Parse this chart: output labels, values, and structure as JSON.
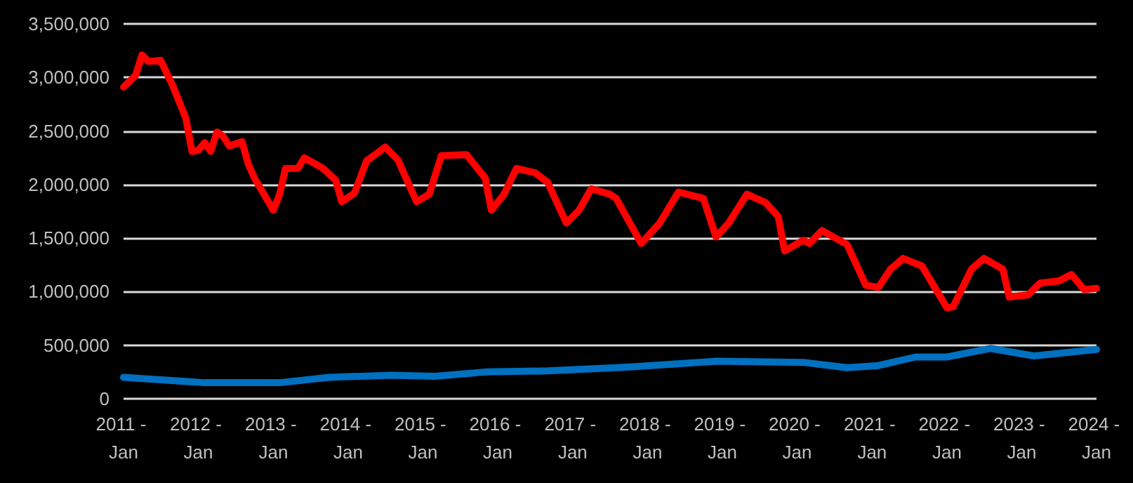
{
  "chart_data": {
    "type": "line",
    "x": [
      "2011-01",
      "2011-03",
      "2011-04",
      "2011-05",
      "2011-07",
      "2011-09",
      "2011-11",
      "2011-12",
      "2012-01",
      "2012-02",
      "2012-03",
      "2012-04",
      "2012-05",
      "2012-06",
      "2012-08",
      "2012-09",
      "2012-10",
      "2013-01",
      "2013-02",
      "2013-03",
      "2013-05",
      "2013-06",
      "2013-09",
      "2013-11",
      "2013-12",
      "2014-02",
      "2014-04",
      "2014-07",
      "2014-09",
      "2014-12",
      "2015-02",
      "2015-04",
      "2015-08",
      "2015-11",
      "2015-12",
      "2016-02",
      "2016-04",
      "2016-07",
      "2016-09",
      "2016-12",
      "2017-02",
      "2017-04",
      "2017-07",
      "2017-08",
      "2017-12",
      "2018-03",
      "2018-06",
      "2018-10",
      "2018-12",
      "2019-02",
      "2019-05",
      "2019-08",
      "2019-10",
      "2019-11",
      "2020-02",
      "2020-03",
      "2020-05",
      "2020-09",
      "2020-12",
      "2021-02",
      "2021-04",
      "2021-06",
      "2021-09",
      "2022-01",
      "2022-02",
      "2022-05",
      "2022-07",
      "2022-10",
      "2022-11",
      "2023-02",
      "2023-04",
      "2023-07",
      "2023-09",
      "2023-11",
      "2024-01"
    ],
    "series": [
      {
        "color": "#ff0000",
        "values": [
          2910000,
          3020000,
          3210000,
          3150000,
          3160000,
          2910000,
          2620000,
          2310000,
          2320000,
          2390000,
          2310000,
          2490000,
          2450000,
          2360000,
          2400000,
          2190000,
          2060000,
          1760000,
          1910000,
          2150000,
          2150000,
          2250000,
          2150000,
          2040000,
          1840000,
          1920000,
          2220000,
          2350000,
          2230000,
          1840000,
          1910000,
          2270000,
          2280000,
          2060000,
          1760000,
          1910000,
          2150000,
          2110000,
          2020000,
          1640000,
          1760000,
          1960000,
          1910000,
          1870000,
          1450000,
          1640000,
          1930000,
          1870000,
          1510000,
          1640000,
          1910000,
          1830000,
          1700000,
          1380000,
          1480000,
          1450000,
          1570000,
          1440000,
          1060000,
          1040000,
          1210000,
          1310000,
          1240000,
          850000,
          860000,
          1210000,
          1310000,
          1210000,
          950000,
          970000,
          1080000,
          1100000,
          1160000,
          1020000,
          1030000
        ]
      },
      {
        "color": "#0070c0",
        "x": [
          "2011-01",
          "2012-02",
          "2013-02",
          "2013-10",
          "2014-08",
          "2015-03",
          "2015-11",
          "2016-09",
          "2017-08",
          "2017-11",
          "2018-12",
          "2020-02",
          "2020-09",
          "2021-02",
          "2021-08",
          "2022-01",
          "2022-08",
          "2023-03",
          "2024-01"
        ],
        "values": [
          200000,
          150000,
          150000,
          200000,
          220000,
          210000,
          250000,
          260000,
          290000,
          300000,
          350000,
          340000,
          290000,
          310000,
          390000,
          390000,
          470000,
          400000,
          460000
        ]
      }
    ],
    "xlim": [
      "2011-01",
      "2024-01"
    ],
    "xticks": [
      {
        "value": "2011-01",
        "label": "2011 - Jan"
      },
      {
        "value": "2012-01",
        "label": "2012 - Jan"
      },
      {
        "value": "2013-01",
        "label": "2013 - Jan"
      },
      {
        "value": "2014-01",
        "label": "2014 - Jan"
      },
      {
        "value": "2015-01",
        "label": "2015 - Jan"
      },
      {
        "value": "2016-01",
        "label": "2016 - Jan"
      },
      {
        "value": "2017-01",
        "label": "2017 - Jan"
      },
      {
        "value": "2018-01",
        "label": "2018 - Jan"
      },
      {
        "value": "2019-01",
        "label": "2019 - Jan"
      },
      {
        "value": "2020-01",
        "label": "2020 - Jan"
      },
      {
        "value": "2021-01",
        "label": "2021 - Jan"
      },
      {
        "value": "2022-01",
        "label": "2022 - Jan"
      },
      {
        "value": "2023-01",
        "label": "2023 - Jan"
      },
      {
        "value": "2024-01",
        "label": "2024 - Jan"
      }
    ],
    "ylim": [
      0,
      3500000
    ],
    "yticks": [
      {
        "value": 0,
        "label": "0"
      },
      {
        "value": 500000,
        "label": "500,000"
      },
      {
        "value": 1000000,
        "label": "1,000,000"
      },
      {
        "value": 1500000,
        "label": "1,500,000"
      },
      {
        "value": 2000000,
        "label": "2,000,000"
      },
      {
        "value": 2500000,
        "label": "2,500,000"
      },
      {
        "value": 3000000,
        "label": "3,000,000"
      },
      {
        "value": 3500000,
        "label": "3,500,000"
      }
    ],
    "grid": "y",
    "marker": "none",
    "line_style": "solid"
  }
}
